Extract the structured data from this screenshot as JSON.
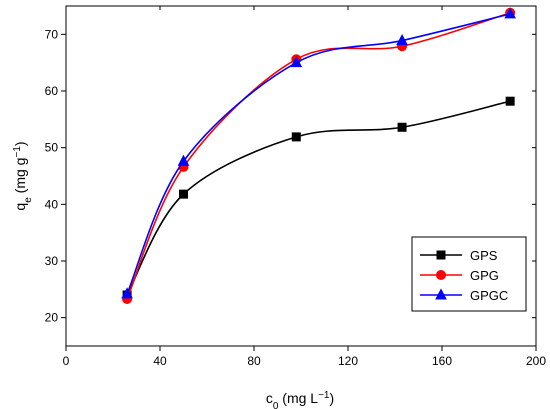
{
  "chart_data": {
    "type": "line",
    "title": "",
    "xlabel": {
      "main": "c",
      "sub": "0",
      "unit_open": " (mg L",
      "unit_sup": "−1",
      "unit_close": ")"
    },
    "ylabel": {
      "main": "q",
      "sub": "e",
      "unit_open": " (mg g",
      "unit_sup": "−1",
      "unit_close": ")"
    },
    "xlim": [
      0,
      200
    ],
    "ylim": [
      15,
      75
    ],
    "xticks": [
      0,
      40,
      80,
      120,
      160,
      200
    ],
    "yticks": [
      20,
      30,
      40,
      50,
      60,
      70
    ],
    "grid": false,
    "legend_position": "bottom-right",
    "series": [
      {
        "name": "GPS",
        "color": "#000000",
        "marker": "square",
        "x": [
          26,
          50,
          98,
          143,
          189
        ],
        "y": [
          24.0,
          41.8,
          51.9,
          53.6,
          58.2
        ]
      },
      {
        "name": "GPG",
        "color": "#ff0000",
        "marker": "circle",
        "x": [
          26,
          50,
          98,
          143,
          189
        ],
        "y": [
          23.3,
          46.6,
          65.6,
          67.9,
          73.8
        ]
      },
      {
        "name": "GPGC",
        "color": "#0000ff",
        "marker": "triangle",
        "x": [
          26,
          50,
          98,
          143,
          189
        ],
        "y": [
          24.2,
          47.6,
          65.0,
          68.9,
          73.6
        ]
      }
    ]
  }
}
